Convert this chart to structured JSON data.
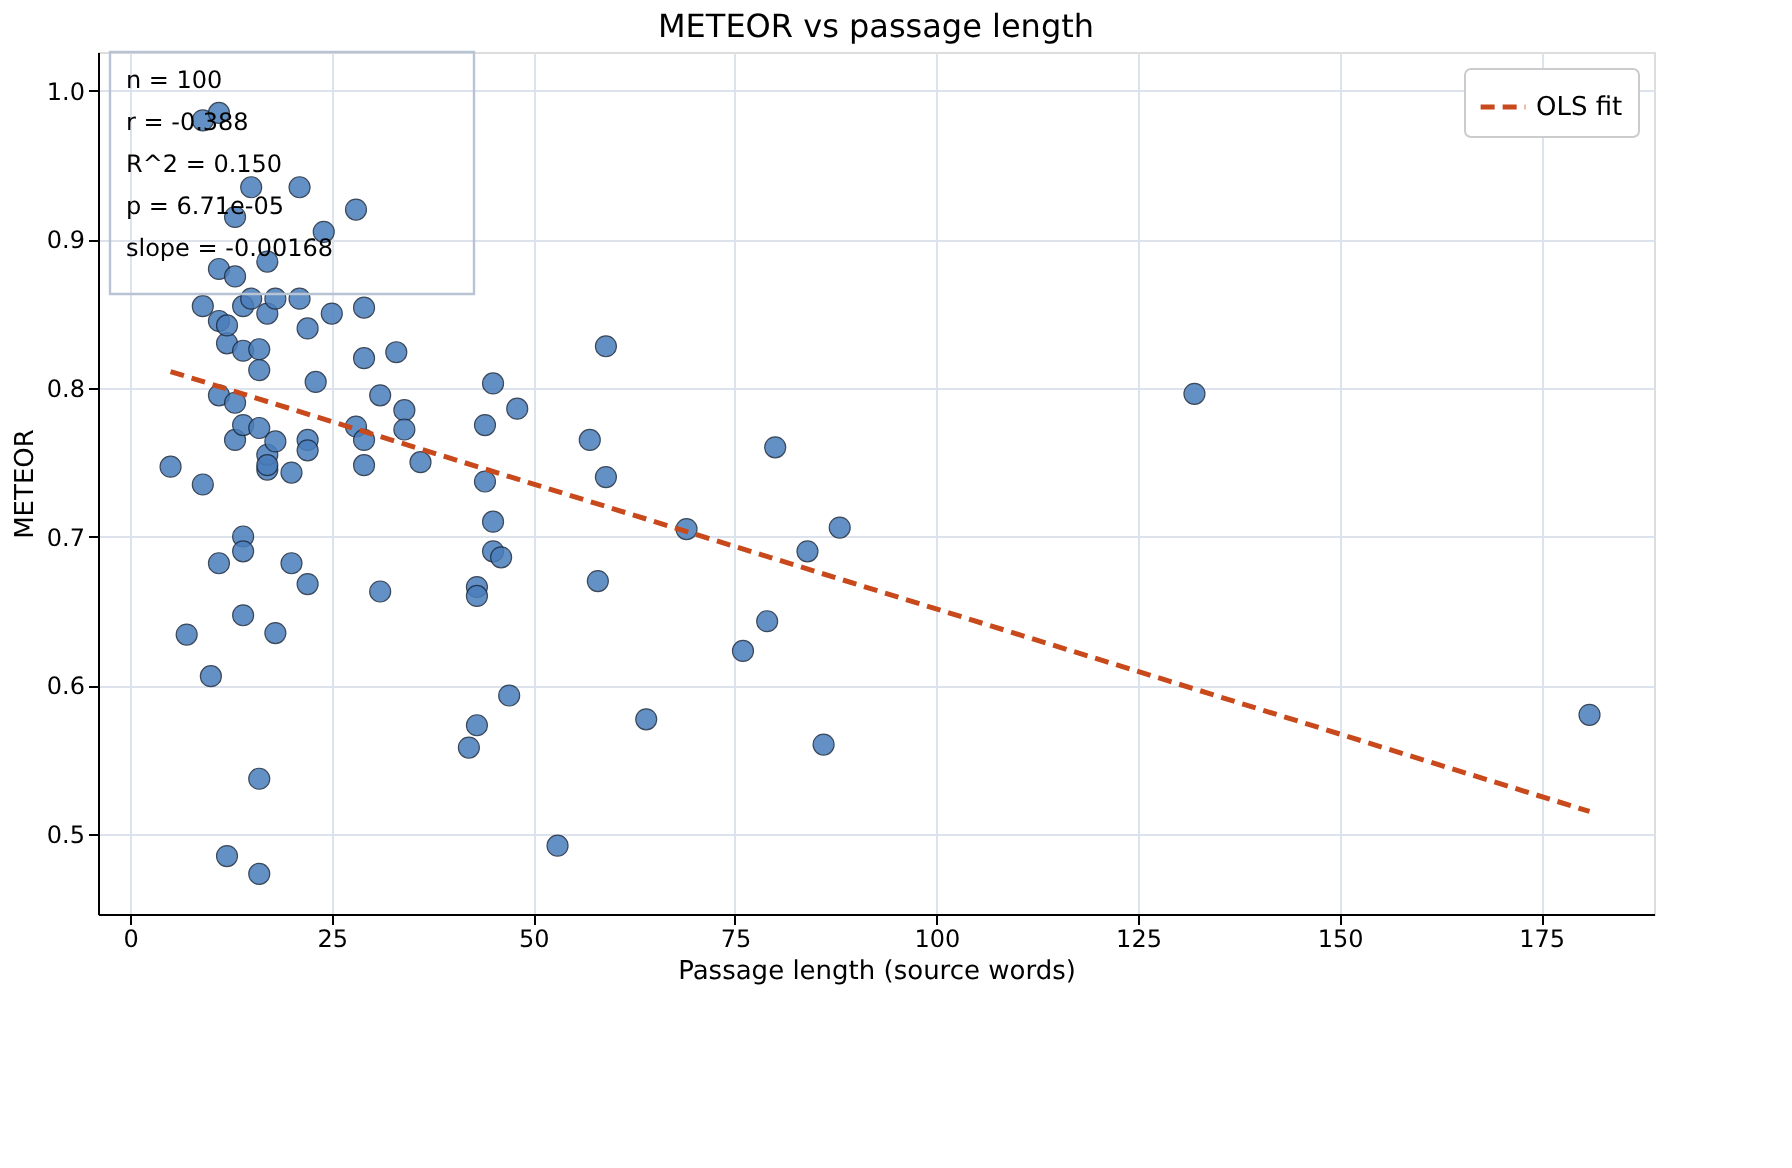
{
  "chart_data": {
    "type": "scatter",
    "title": "METEOR vs passage length",
    "xlabel": "Passage length (source words)",
    "ylabel": "METEOR",
    "xlim": [
      -4,
      189
    ],
    "ylim": [
      0.446,
      1.026
    ],
    "xticks": [
      0,
      25,
      50,
      75,
      100,
      125,
      150,
      175
    ],
    "yticks": [
      0.5,
      0.6,
      0.7,
      0.8,
      0.9,
      {
        "value": 1,
        "label": "1.0"
      }
    ],
    "grid": true,
    "legend": "top right",
    "marker": "circle",
    "annotations": [
      "n = 100",
      "r = -0.388",
      "R^2 = 0.150",
      "p = 6.71e-05",
      "slope = -0.00168"
    ],
    "series": [
      {
        "color": "#4a7ebb",
        "x": [
          5,
          7,
          9,
          10,
          9,
          11,
          11,
          11,
          12,
          12,
          12,
          13,
          13,
          14,
          14,
          14,
          14,
          14,
          14,
          15,
          16,
          16,
          16,
          16,
          16,
          17,
          17,
          17,
          17,
          18,
          18,
          18,
          20,
          20,
          21,
          22,
          22,
          22,
          22,
          23,
          25,
          28,
          29,
          29,
          29,
          29,
          31,
          31,
          33,
          34,
          34,
          36,
          42,
          43,
          43,
          43,
          44,
          44,
          45,
          45,
          45,
          46,
          47,
          48,
          53,
          57,
          58,
          59,
          59,
          64,
          69,
          76,
          79,
          80,
          84,
          86,
          88,
          132,
          181,
          9,
          11,
          13,
          15,
          21,
          24,
          28,
          11,
          13,
          17
        ],
        "values": [
          0.747,
          0.634,
          0.735,
          0.606,
          0.855,
          0.845,
          0.795,
          0.682,
          0.485,
          0.83,
          0.842,
          0.765,
          0.79,
          0.775,
          0.825,
          0.7,
          0.69,
          0.647,
          0.855,
          0.86,
          0.537,
          0.473,
          0.826,
          0.812,
          0.773,
          0.745,
          0.755,
          0.748,
          0.85,
          0.635,
          0.86,
          0.764,
          0.682,
          0.743,
          0.86,
          0.84,
          0.765,
          0.758,
          0.668,
          0.804,
          0.85,
          0.774,
          0.765,
          0.748,
          0.82,
          0.854,
          0.663,
          0.795,
          0.824,
          0.785,
          0.772,
          0.75,
          0.558,
          0.573,
          0.666,
          0.66,
          0.737,
          0.775,
          0.803,
          0.71,
          0.69,
          0.686,
          0.593,
          0.786,
          0.492,
          0.765,
          0.67,
          0.74,
          0.828,
          0.577,
          0.705,
          0.623,
          0.643,
          0.76,
          0.69,
          0.56,
          0.706,
          0.796,
          0.58,
          0.98,
          0.985,
          0.915,
          0.935,
          0.935,
          0.905,
          0.92,
          0.88,
          0.875,
          0.885
        ]
      },
      {
        "type": "line",
        "name": "OLS fit",
        "color": "#c8491b",
        "line_style": "dashed",
        "marker": "none",
        "x": [
          5,
          181
        ],
        "values": [
          0.811,
          0.515
        ]
      }
    ]
  }
}
